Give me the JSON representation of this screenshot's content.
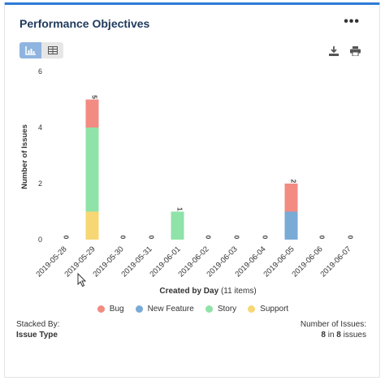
{
  "header": {
    "title": "Performance Objectives",
    "more_label": "•••"
  },
  "view_toggle": {
    "chart_icon": "bar-chart-icon",
    "table_icon": "table-icon"
  },
  "toolbar": {
    "download_icon": "download-icon",
    "print_icon": "print-icon"
  },
  "colors": {
    "Bug": "#f28b82",
    "New Feature": "#7aaad6",
    "Story": "#8fe3a8",
    "Support": "#f7d774",
    "accent": "#2e7bd6"
  },
  "chart_data": {
    "type": "bar",
    "stacked": true,
    "categories": [
      "2019-05-28",
      "2019-05-29",
      "2019-05-30",
      "2019-05-31",
      "2019-06-01",
      "2019-06-02",
      "2019-06-03",
      "2019-06-04",
      "2019-06-05",
      "2019-06-06",
      "2019-06-07"
    ],
    "series": [
      {
        "name": "Support",
        "values": [
          0,
          1,
          0,
          0,
          0,
          0,
          0,
          0,
          0,
          0,
          0
        ]
      },
      {
        "name": "Story",
        "values": [
          0,
          3,
          0,
          0,
          1,
          0,
          0,
          0,
          0,
          0,
          0
        ]
      },
      {
        "name": "New Feature",
        "values": [
          0,
          0,
          0,
          0,
          0,
          0,
          0,
          0,
          1,
          0,
          0
        ]
      },
      {
        "name": "Bug",
        "values": [
          0,
          1,
          0,
          0,
          0,
          0,
          0,
          0,
          1,
          0,
          0
        ]
      }
    ],
    "totals": [
      0,
      5,
      0,
      0,
      1,
      0,
      0,
      0,
      2,
      0,
      0
    ],
    "xlabel": "Created by Day",
    "xlabel_suffix": "(11 items)",
    "ylabel": "Number of Issues",
    "ylim": [
      0,
      6
    ],
    "yticks": [
      0,
      2,
      4,
      6
    ],
    "grid": false,
    "legend": [
      "Bug",
      "New Feature",
      "Story",
      "Support"
    ],
    "legend_placement": "bottom"
  },
  "footer": {
    "stacked_by_label": "Stacked By:",
    "stacked_by_value": "Issue Type",
    "count_label": "Number of Issues:",
    "count_value": "8",
    "count_in": "in",
    "count_total": "8",
    "count_suffix": "issues"
  }
}
